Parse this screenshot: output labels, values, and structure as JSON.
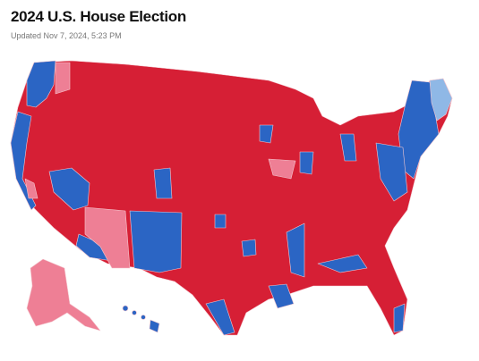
{
  "header": {
    "title": "2024 U.S. House Election",
    "updated": "Updated Nov 7, 2024, 5:23 PM"
  }
}
